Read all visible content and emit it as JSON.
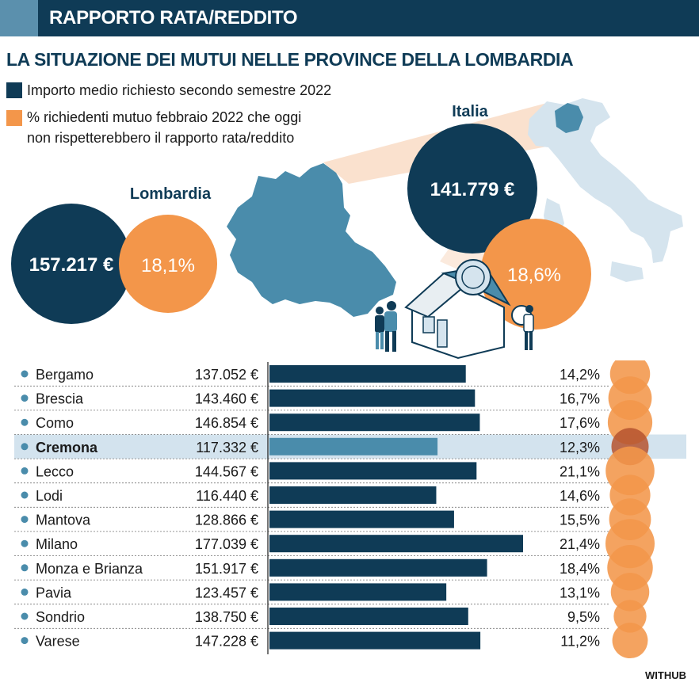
{
  "header": {
    "title": "RAPPORTO RATA/REDDITO"
  },
  "title": "LA SITUAZIONE DEI MUTUI NELLE PROVINCE DELLA LOMBARDIA",
  "legend": {
    "amount": "Importo medio richiesto secondo semestre 2022",
    "percent_line1": "% richiedenti mutuo febbraio 2022 che oggi",
    "percent_line2": "non rispetterebbero il rapporto rata/reddito"
  },
  "lombardia": {
    "label": "Lombardia",
    "amount": "157.217 €",
    "percent": "18,1%"
  },
  "italia": {
    "label": "Italia",
    "amount": "141.779 €",
    "percent": "18,6%"
  },
  "source": "WITHUB",
  "colors": {
    "navy": "#0f3b56",
    "orange": "#f3964a",
    "highlight": "#d3e3ee",
    "highlight_bar": "#4a8cab",
    "map_blue": "#4a8cab",
    "italy_light": "#d5e4ee"
  },
  "chart_data": {
    "type": "bar",
    "categories": [
      "Bergamo",
      "Brescia",
      "Como",
      "Cremona",
      "Lecco",
      "Lodi",
      "Mantova",
      "Milano",
      "Monza e Brianza",
      "Pavia",
      "Sondrio",
      "Varese"
    ],
    "highlighted": "Cremona",
    "series": [
      {
        "name": "Importo medio richiesto secondo semestre 2022",
        "values": [
          137052,
          143460,
          146854,
          117332,
          144567,
          116440,
          128866,
          177039,
          151917,
          123457,
          138750,
          147228
        ],
        "labels": [
          "137.052 €",
          "143.460 €",
          "146.854 €",
          "117.332 €",
          "144.567 €",
          "116.440 €",
          "128.866 €",
          "177.039 €",
          "151.917 €",
          "123.457 €",
          "138.750 €",
          "147.228 €"
        ]
      },
      {
        "name": "% richiedenti mutuo febbraio 2022 che oggi non rispetterebbero il rapporto rata/reddito",
        "values": [
          14.2,
          16.7,
          17.6,
          12.3,
          21.1,
          14.6,
          15.5,
          21.4,
          18.4,
          13.1,
          9.5,
          11.2
        ],
        "labels": [
          "14,2%",
          "16,7%",
          "17,6%",
          "12,3%",
          "21,1%",
          "14,6%",
          "15,5%",
          "21,4%",
          "18,4%",
          "13,1%",
          "9,5%",
          "11,2%"
        ]
      }
    ],
    "xlim": [
      0,
      177039
    ]
  }
}
